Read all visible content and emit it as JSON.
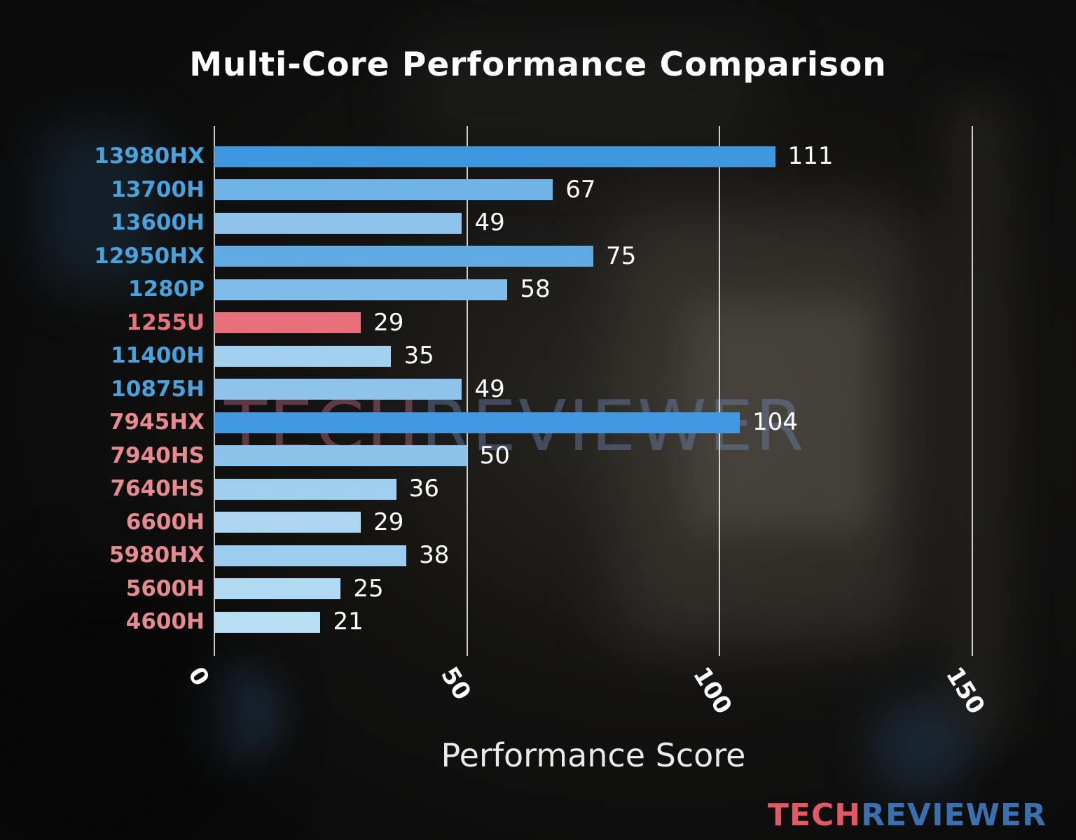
{
  "chart_data": {
    "type": "bar",
    "orientation": "horizontal",
    "title": "Multi-Core Performance Comparison",
    "xlabel": "Performance Score",
    "categories": [
      "13980HX",
      "13700H",
      "13600H",
      "12950HX",
      "1280P",
      "1255U",
      "11400H",
      "10875H",
      "7945HX",
      "7940HS",
      "7640HS",
      "6600H",
      "5980HX",
      "5600H",
      "4600H"
    ],
    "values": [
      111,
      67,
      49,
      75,
      58,
      29,
      35,
      49,
      104,
      50,
      36,
      29,
      38,
      25,
      21
    ],
    "bar_colors": [
      "#3e96df",
      "#6fb3e7",
      "#8ec4eb",
      "#60abe4",
      "#7fbce9",
      "#e8707b",
      "#a3d0ef",
      "#8ec4eb",
      "#4399e1",
      "#8cc3eb",
      "#a1cfef",
      "#abd5f0",
      "#9dcdee",
      "#b2d9f2",
      "#b9ddf3"
    ],
    "label_colors": [
      "#4aa2dc",
      "#4aa2dc",
      "#4aa2dc",
      "#4aa2dc",
      "#4aa2dc",
      "#e8737d",
      "#4aa2dc",
      "#4aa2dc",
      "#e88b91",
      "#e88b91",
      "#e88b91",
      "#e88b91",
      "#e88b91",
      "#e88b91",
      "#e88b91"
    ],
    "xlim": [
      0,
      150
    ],
    "xticks": [
      0,
      50,
      100,
      150
    ],
    "grid": true,
    "highlighted_category": "1255U",
    "highlight_color": "#e8707b",
    "value_label_color": "#ffffff",
    "gridline_color": "#eeeeee"
  },
  "watermark": {
    "text_left": "TECH",
    "text_right": "REVIEWER",
    "color_left": "rgba(170,95,118,0.50)",
    "color_right": "rgba(112,136,180,0.42)"
  },
  "footer_logo": {
    "text_left": "TECH",
    "text_right": "REVIEWER",
    "color_left": "#e25964",
    "color_right": "#3a6fb0"
  }
}
